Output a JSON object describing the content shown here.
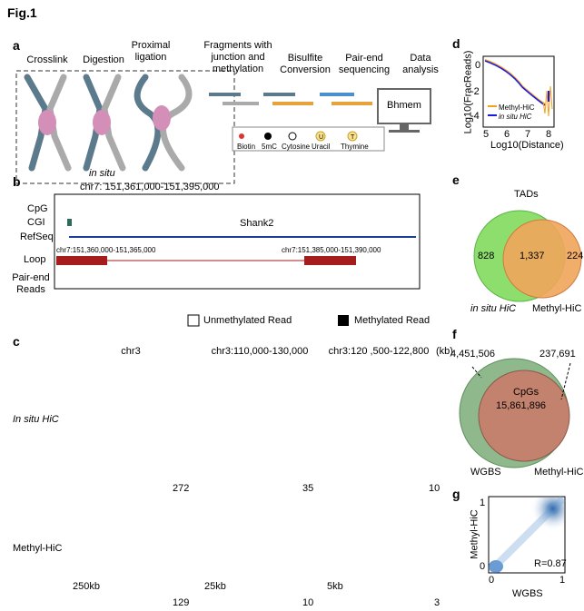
{
  "figure_label": "Fig.1",
  "panel_a": {
    "label": "a",
    "steps": [
      "Crosslink",
      "Digestion",
      "Proximal ligation",
      "Fragments with junction and methylation",
      "Bisulfite Conversion",
      "Pair-end sequencing",
      "Data analysis"
    ],
    "in_situ": "in situ",
    "software": "Bhmem",
    "legend": [
      "Biotin",
      "5mC",
      "Cytosine",
      "Uracil",
      "Thymine"
    ],
    "legend_icons": [
      "U",
      "T"
    ]
  },
  "panel_b": {
    "label": "b",
    "region": "chr7: 151,361,000-151,395,000",
    "tracks": [
      "CpG",
      "CGI",
      "RefSeq",
      "Loop",
      "Pair-end Reads"
    ],
    "gene": "Shank2",
    "anchors": [
      "chr7:151,360,000-151,365,000",
      "chr7:151,385,000-151,390,000"
    ],
    "legend": [
      "Unmethylated Read",
      "Methylated Read"
    ]
  },
  "panel_c": {
    "label": "c",
    "columns": [
      "chr3",
      "chr3:110,000-130,000",
      "chr3:120 ,500-122,800"
    ],
    "unit": "(kb)",
    "rows": [
      "In situ HiC",
      "Methyl-HiC"
    ],
    "max_values": [
      [
        "272",
        "35",
        "10"
      ],
      [
        "129",
        "10",
        "3"
      ]
    ],
    "resolutions": [
      "250kb",
      "25kb",
      "5kb"
    ]
  },
  "panel_d": {
    "label": "d",
    "ylabel": "Log10(FracReads)",
    "xlabel": "Log10(Distance)",
    "xticks": [
      "5",
      "6",
      "7",
      "8"
    ],
    "yticks": [
      "-4",
      "-2",
      "0"
    ],
    "legend": [
      "Methyl-HiC",
      "in situ HiC"
    ]
  },
  "panel_e": {
    "label": "e",
    "title": "TADs",
    "counts": [
      "828",
      "1,337",
      "224"
    ],
    "sets": [
      "in situ HiC",
      "Methyl-HiC"
    ]
  },
  "panel_f": {
    "label": "f",
    "center_label": "CpGs",
    "counts": [
      "4,451,506",
      "15,861,896",
      "237,691"
    ],
    "sets": [
      "WGBS",
      "Methyl-HiC"
    ]
  },
  "panel_g": {
    "label": "g",
    "ylabel": "Methyl-HiC",
    "xlabel": "WGBS",
    "xticks": [
      "0",
      "1"
    ],
    "yticks": [
      "0",
      "1"
    ],
    "annotation": "R=0.87"
  }
}
